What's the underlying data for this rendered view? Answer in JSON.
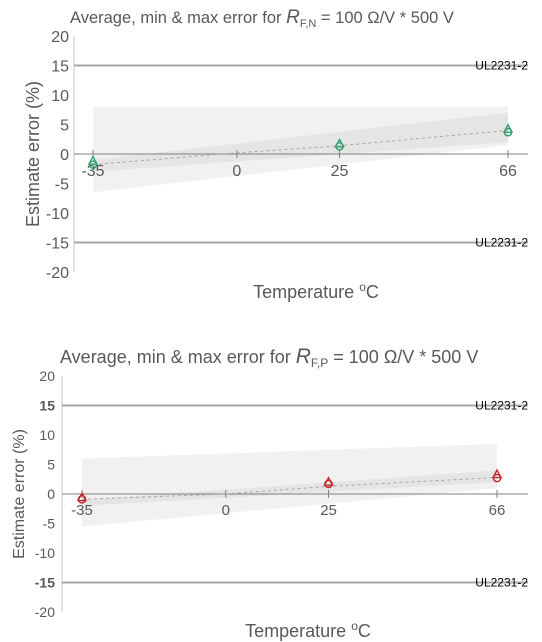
{
  "chart_data": [
    {
      "type": "scatter",
      "title": {
        "prefix": "Average, min & max error for ",
        "symbol": "R",
        "subscript": "F,N",
        "suffix": " = 100 Ω/V * 500 V"
      },
      "xlabel": {
        "main": "Temperature ",
        "superscript": "o",
        "unit": "C"
      },
      "ylabel": "Estimate error  (%)",
      "x_ticks": [
        -35,
        0,
        25,
        66
      ],
      "y_ticks": [
        "20",
        "15",
        "10",
        "5",
        "0",
        "-5",
        "-10",
        "-15",
        "-20"
      ],
      "ylim": [
        -20,
        20
      ],
      "limit_lines": [
        {
          "name": "UL2231-2",
          "value": 15
        },
        {
          "name": "UL2231-2",
          "value": -15
        }
      ],
      "marker_color": "#2e9e6e",
      "series": [
        {
          "marker": "triangle",
          "x": [
            -35,
            25,
            66
          ],
          "y": [
            -1.2,
            1.7,
            4.2
          ]
        },
        {
          "marker": "circle",
          "x": [
            -35,
            25,
            66
          ],
          "y": [
            -1.8,
            1.3,
            3.7
          ]
        }
      ],
      "average_trend": {
        "x": [
          -35,
          0,
          25,
          66
        ],
        "y": [
          -1.8,
          0.2,
          1.4,
          4.0
        ]
      },
      "band_outer": {
        "x": [
          -35,
          66
        ],
        "upper": [
          8.0,
          8.0
        ],
        "lower": [
          -6.5,
          1.5
        ]
      },
      "band_inner": {
        "x": [
          -35,
          66
        ],
        "upper": [
          -1.0,
          7.0
        ],
        "lower": [
          -3.0,
          2.0
        ]
      }
    },
    {
      "type": "scatter",
      "title": {
        "prefix": "Average, min & max error for ",
        "symbol": "R",
        "subscript": "F,P",
        "suffix": " = 100 Ω/V * 500 V"
      },
      "xlabel": {
        "main": "Temperature ",
        "superscript": "o",
        "unit": "C"
      },
      "ylabel": "Estimate error (%)",
      "x_ticks": [
        -35,
        0,
        25,
        66
      ],
      "y_ticks": [
        "20",
        "15",
        "10",
        "5",
        "0",
        "-5",
        "-10",
        "-15",
        "-20"
      ],
      "ylim": [
        -20,
        20
      ],
      "limit_lines": [
        {
          "name": "UL2231-2",
          "value": 15
        },
        {
          "name": "UL2231-2",
          "value": -15
        }
      ],
      "marker_color": "#c0282d",
      "series": [
        {
          "marker": "triangle",
          "x": [
            -35,
            25,
            66
          ],
          "y": [
            -0.6,
            2.0,
            3.3
          ]
        },
        {
          "marker": "circle",
          "x": [
            -35,
            25,
            66
          ],
          "y": [
            -0.9,
            1.7,
            2.7
          ]
        }
      ],
      "average_trend": {
        "x": [
          -35,
          0,
          25,
          66
        ],
        "y": [
          -0.9,
          0.0,
          1.3,
          2.8
        ]
      },
      "band_outer": {
        "x": [
          -35,
          66
        ],
        "upper": [
          6.0,
          8.5
        ],
        "lower": [
          -5.5,
          1.0
        ]
      },
      "band_inner": {
        "x": [
          -35,
          66
        ],
        "upper": [
          -1.0,
          4.0
        ],
        "lower": [
          -2.0,
          2.0
        ]
      }
    }
  ]
}
